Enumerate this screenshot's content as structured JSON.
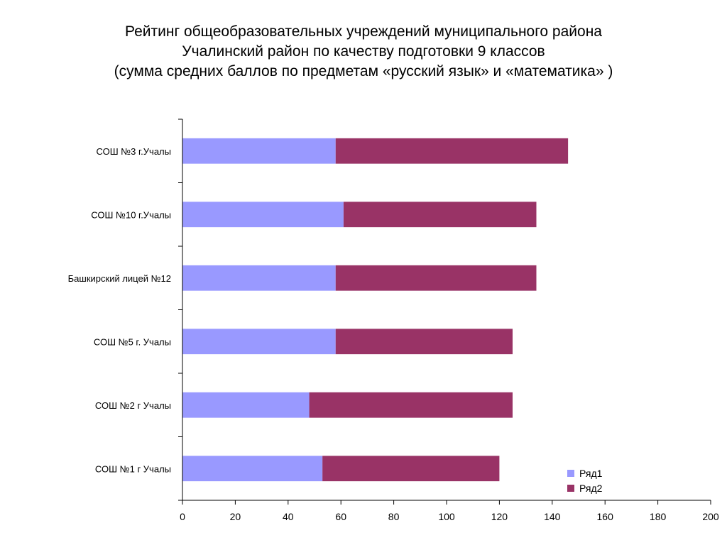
{
  "title": {
    "line1": "Рейтинг общеобразовательных учреждений муниципального района",
    "line2": "Учалинский район по качеству подготовки 9 классов",
    "line3": "(сумма средних баллов по предметам «русский язык» и «математика» )"
  },
  "chart_data": {
    "type": "bar",
    "orientation": "horizontal",
    "stacked": true,
    "categories": [
      "СОШ №3 г.Учалы",
      "СОШ №10 г.Учалы",
      "Башкирский лицей №12",
      "СОШ №5  г. Учалы",
      "СОШ №2 г Учалы",
      "СОШ №1 г Учалы"
    ],
    "series": [
      {
        "name": "Ряд1",
        "color": "#9999ff",
        "values": [
          58,
          61,
          58,
          58,
          48,
          53
        ]
      },
      {
        "name": "Ряд2",
        "color": "#993366",
        "values": [
          88,
          73,
          76,
          67,
          77,
          67
        ]
      }
    ],
    "xlim": [
      0,
      200
    ],
    "x_ticks": [
      "0",
      "20",
      "40",
      "60",
      "80",
      "100",
      "120",
      "140",
      "160",
      "180",
      "200"
    ],
    "grid": false,
    "legend_position": "bottom-right"
  }
}
